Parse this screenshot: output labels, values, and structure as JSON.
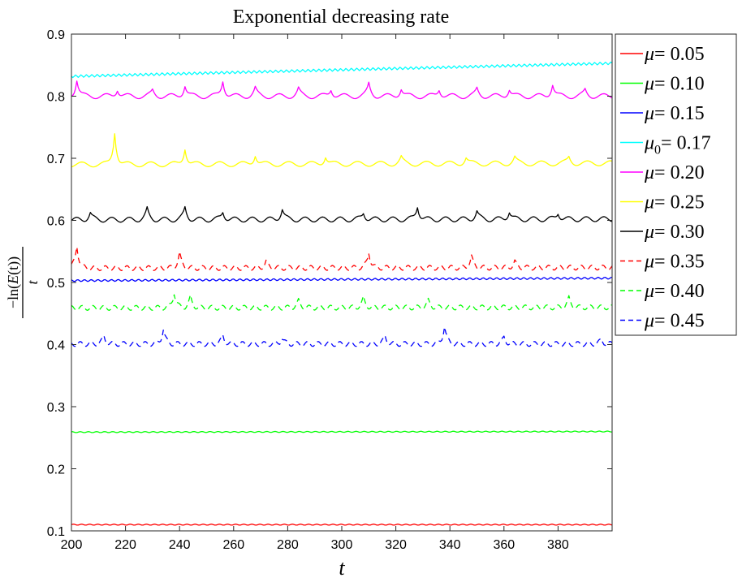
{
  "chart_data": {
    "type": "line",
    "title": "Exponential decreasing rate",
    "xlabel": "t",
    "ylabel": {
      "minus": "−",
      "func": "ln(",
      "var": "E",
      "inner": "(t))",
      "denominator": "t"
    },
    "xlim": [
      200,
      400
    ],
    "ylim": [
      0.1,
      0.9
    ],
    "xticks": [
      "200",
      "220",
      "240",
      "260",
      "280",
      "300",
      "320",
      "340",
      "360",
      "380"
    ],
    "yticks": [
      "0.1",
      "0.2",
      "0.3",
      "0.4",
      "0.5",
      "0.6",
      "0.7",
      "0.8",
      "0.9"
    ],
    "grid": false,
    "legend_position": "outside-right-top",
    "series": [
      {
        "name": "μ= 0.05",
        "symbol": "μ",
        "sub": "",
        "value": "= 0.05",
        "color": "#ff0000",
        "dash": "solid",
        "base": 0.11,
        "end": 0.11,
        "amp": 0.0008,
        "period": 3.0,
        "spikes": []
      },
      {
        "name": "μ= 0.10",
        "symbol": "μ",
        "sub": "",
        "value": "= 0.10",
        "color": "#00ff00",
        "dash": "solid",
        "base": 0.259,
        "end": 0.26,
        "amp": 0.0008,
        "period": 3.0,
        "spikes": []
      },
      {
        "name": "μ= 0.15",
        "symbol": "μ",
        "sub": "",
        "value": "= 0.15",
        "color": "#0000ff",
        "dash": "solid",
        "base": 0.503,
        "end": 0.507,
        "amp": 0.0015,
        "period": 2.5,
        "spikes": []
      },
      {
        "name": "μ0= 0.17",
        "symbol": "μ",
        "sub": "0",
        "value": "= 0.17",
        "color": "#00ffff",
        "dash": "solid",
        "base": 0.832,
        "end": 0.853,
        "amp": 0.002,
        "period": 2.0,
        "spikes": []
      },
      {
        "name": "μ= 0.20",
        "symbol": "μ",
        "sub": "",
        "value": "= 0.20",
        "color": "#ff00ff",
        "dash": "solid",
        "base": 0.8,
        "end": 0.8,
        "amp": 0.004,
        "period": 8.0,
        "spikes": [
          [
            202,
            0.827
          ],
          [
            217,
            0.812
          ],
          [
            230,
            0.809
          ],
          [
            242,
            0.818
          ],
          [
            256,
            0.826
          ],
          [
            268,
            0.813
          ],
          [
            284,
            0.812
          ],
          [
            296,
            0.812
          ],
          [
            310,
            0.82
          ],
          [
            322,
            0.813
          ],
          [
            336,
            0.812
          ],
          [
            350,
            0.812
          ],
          [
            362,
            0.812
          ],
          [
            378,
            0.82
          ],
          [
            390,
            0.81
          ]
        ]
      },
      {
        "name": "μ= 0.25",
        "symbol": "μ",
        "sub": "",
        "value": "= 0.25",
        "color": "#ffff00",
        "dash": "solid",
        "base": 0.69,
        "end": 0.692,
        "amp": 0.004,
        "period": 8.5,
        "spikes": [
          [
            216,
            0.743
          ],
          [
            242,
            0.717
          ],
          [
            268,
            0.706
          ],
          [
            294,
            0.703
          ],
          [
            322,
            0.7
          ],
          [
            346,
            0.7
          ],
          [
            364,
            0.7
          ],
          [
            384,
            0.7
          ]
        ]
      },
      {
        "name": "μ= 0.30",
        "symbol": "μ",
        "sub": "",
        "value": "= 0.30",
        "color": "#000000",
        "dash": "solid",
        "base": 0.601,
        "end": 0.602,
        "amp": 0.004,
        "period": 6.5,
        "spikes": [
          [
            207,
            0.612
          ],
          [
            228,
            0.618
          ],
          [
            242,
            0.62
          ],
          [
            256,
            0.614
          ],
          [
            278,
            0.618
          ],
          [
            308,
            0.612
          ],
          [
            328,
            0.623
          ],
          [
            350,
            0.614
          ],
          [
            362,
            0.614
          ],
          [
            380,
            0.612
          ]
        ]
      },
      {
        "name": "μ= 0.35",
        "symbol": "μ",
        "sub": "",
        "value": "= 0.35",
        "color": "#ff0000",
        "dash": "dashed",
        "base": 0.523,
        "end": 0.524,
        "amp": 0.004,
        "period": 4.0,
        "spikes": [
          [
            202,
            0.56
          ],
          [
            240,
            0.547
          ],
          [
            272,
            0.533
          ],
          [
            310,
            0.548
          ],
          [
            348,
            0.541
          ],
          [
            364,
            0.533
          ]
        ]
      },
      {
        "name": "μ= 0.40",
        "symbol": "μ",
        "sub": "",
        "value": "= 0.40",
        "color": "#00ff00",
        "dash": "dashed",
        "base": 0.459,
        "end": 0.46,
        "amp": 0.004,
        "period": 4.0,
        "spikes": [
          [
            238,
            0.484
          ],
          [
            244,
            0.476
          ],
          [
            284,
            0.47
          ],
          [
            308,
            0.474
          ],
          [
            332,
            0.47
          ],
          [
            384,
            0.474
          ]
        ]
      },
      {
        "name": "μ= 0.45",
        "symbol": "μ",
        "sub": "",
        "value": "= 0.45",
        "color": "#0000ff",
        "dash": "dashed",
        "base": 0.401,
        "end": 0.401,
        "amp": 0.004,
        "period": 4.0,
        "spikes": [
          [
            212,
            0.413
          ],
          [
            234,
            0.425
          ],
          [
            256,
            0.414
          ],
          [
            278,
            0.41
          ],
          [
            316,
            0.413
          ],
          [
            338,
            0.43
          ],
          [
            360,
            0.412
          ],
          [
            396,
            0.408
          ]
        ]
      }
    ]
  }
}
